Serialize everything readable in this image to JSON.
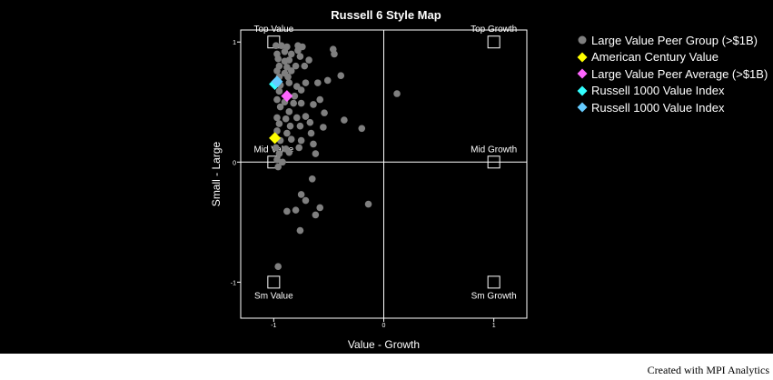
{
  "footer": {
    "credit": "Created with MPI Analytics"
  },
  "chart_data": {
    "type": "scatter",
    "title": "Russell 6 Style Map",
    "xlabel": "Value - Growth",
    "ylabel": "Small - Large",
    "xlim": [
      -1.3,
      1.3
    ],
    "ylim": [
      -1.3,
      1.1
    ],
    "xticks": [
      -1,
      0,
      1
    ],
    "yticks": [
      -1,
      0,
      1
    ],
    "grid": false,
    "legend_position": "right",
    "crosshair_at": [
      0,
      0
    ],
    "style_boxes": [
      {
        "label": "Top Value",
        "x": -1,
        "y": 1,
        "label_pos": "above"
      },
      {
        "label": "Top Growth",
        "x": 1,
        "y": 1,
        "label_pos": "above"
      },
      {
        "label": "Mid Value",
        "x": -1,
        "y": 0,
        "label_pos": "above"
      },
      {
        "label": "Mid Growth",
        "x": 1,
        "y": 0,
        "label_pos": "above"
      },
      {
        "label": "Sm Value",
        "x": -1,
        "y": -1,
        "label_pos": "below"
      },
      {
        "label": "Sm Growth",
        "x": 1,
        "y": -1,
        "label_pos": "below"
      }
    ],
    "series": [
      {
        "name": "Large Value Peer Group (>$1B)",
        "marker": "circle",
        "color": "#7f7f7f",
        "points": [
          [
            -0.98,
            0.97
          ],
          [
            -0.93,
            0.97
          ],
          [
            -0.88,
            0.96
          ],
          [
            -0.78,
            0.97
          ],
          [
            -0.74,
            0.96
          ],
          [
            -0.97,
            0.9
          ],
          [
            -0.9,
            0.92
          ],
          [
            -0.84,
            0.9
          ],
          [
            -0.78,
            0.93
          ],
          [
            -0.76,
            0.88
          ],
          [
            -0.68,
            0.85
          ],
          [
            -0.46,
            0.94
          ],
          [
            -0.45,
            0.9
          ],
          [
            -0.96,
            0.86
          ],
          [
            -0.9,
            0.84
          ],
          [
            -0.86,
            0.85
          ],
          [
            -0.95,
            0.8
          ],
          [
            -0.88,
            0.79
          ],
          [
            -0.8,
            0.8
          ],
          [
            -0.72,
            0.8
          ],
          [
            -0.97,
            0.76
          ],
          [
            -0.9,
            0.74
          ],
          [
            -0.84,
            0.76
          ],
          [
            -0.95,
            0.71
          ],
          [
            -0.87,
            0.71
          ],
          [
            -0.6,
            0.66
          ],
          [
            -0.51,
            0.68
          ],
          [
            -0.39,
            0.72
          ],
          [
            -0.94,
            0.64
          ],
          [
            -0.86,
            0.66
          ],
          [
            -0.79,
            0.63
          ],
          [
            -0.71,
            0.66
          ],
          [
            -0.95,
            0.59
          ],
          [
            -0.81,
            0.55
          ],
          [
            -0.75,
            0.6
          ],
          [
            0.12,
            0.57
          ],
          [
            -0.97,
            0.52
          ],
          [
            -0.9,
            0.5
          ],
          [
            -0.82,
            0.49
          ],
          [
            -0.75,
            0.49
          ],
          [
            -0.64,
            0.48
          ],
          [
            -0.58,
            0.52
          ],
          [
            -0.94,
            0.46
          ],
          [
            -0.86,
            0.42
          ],
          [
            -0.54,
            0.41
          ],
          [
            -0.97,
            0.37
          ],
          [
            -0.89,
            0.36
          ],
          [
            -0.79,
            0.37
          ],
          [
            -0.71,
            0.38
          ],
          [
            -0.36,
            0.35
          ],
          [
            -0.95,
            0.32
          ],
          [
            -0.85,
            0.3
          ],
          [
            -0.76,
            0.3
          ],
          [
            -0.67,
            0.33
          ],
          [
            -0.55,
            0.29
          ],
          [
            -0.2,
            0.28
          ],
          [
            -0.97,
            0.26
          ],
          [
            -0.88,
            0.24
          ],
          [
            -0.66,
            0.24
          ],
          [
            -0.94,
            0.18
          ],
          [
            -0.84,
            0.19
          ],
          [
            -0.75,
            0.18
          ],
          [
            -0.98,
            0.12
          ],
          [
            -0.89,
            0.11
          ],
          [
            -0.77,
            0.12
          ],
          [
            -0.64,
            0.15
          ],
          [
            -0.95,
            0.07
          ],
          [
            -0.86,
            0.08
          ],
          [
            -0.62,
            0.07
          ],
          [
            -0.97,
            0.02
          ],
          [
            -0.92,
            0.0
          ],
          [
            -0.96,
            -0.04
          ],
          [
            -0.65,
            -0.14
          ],
          [
            -0.75,
            -0.27
          ],
          [
            -0.71,
            -0.32
          ],
          [
            -0.14,
            -0.35
          ],
          [
            -0.88,
            -0.41
          ],
          [
            -0.8,
            -0.4
          ],
          [
            -0.58,
            -0.38
          ],
          [
            -0.62,
            -0.44
          ],
          [
            -0.76,
            -0.57
          ],
          [
            -0.96,
            -0.87
          ]
        ]
      },
      {
        "name": "American Century Value",
        "marker": "diamond",
        "color": "#ffff00",
        "points": [
          [
            -0.99,
            0.2
          ]
        ]
      },
      {
        "name": "Large Value Peer Average (>$1B)",
        "marker": "diamond",
        "color": "#ff66ff",
        "points": [
          [
            -0.88,
            0.55
          ]
        ]
      },
      {
        "name": "Russell 1000 Value Index",
        "marker": "diamond",
        "color": "#33ffff",
        "points": [
          [
            -0.99,
            0.65
          ]
        ]
      },
      {
        "name": "Russell 1000 Value Index",
        "marker": "diamond",
        "color": "#66ccff",
        "points": [
          [
            -0.97,
            0.67
          ]
        ]
      }
    ]
  }
}
